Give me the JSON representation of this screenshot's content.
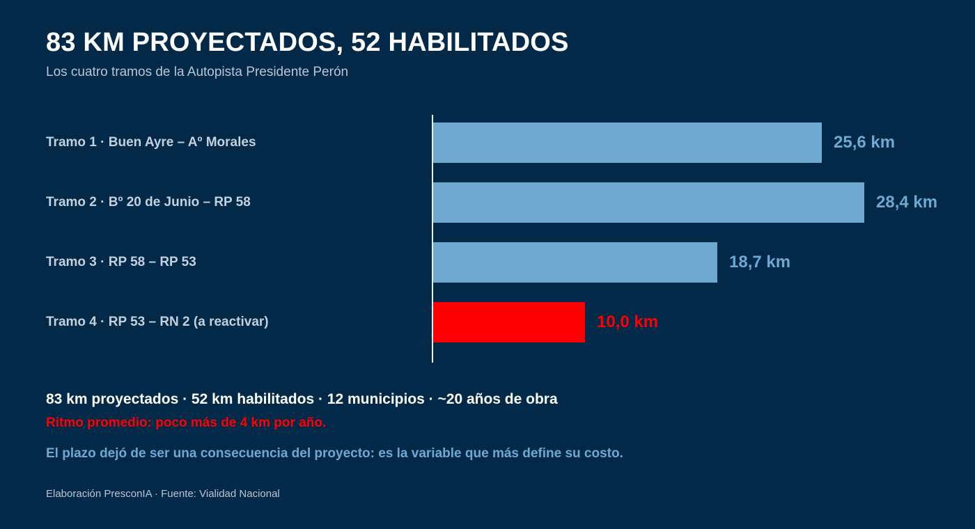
{
  "header": {
    "title": "83 KM PROYECTADOS, 52 HABILITADOS",
    "subtitle": "Los cuatro tramos de la Autopista Presidente Perón"
  },
  "chart_data": {
    "type": "bar",
    "orientation": "horizontal",
    "categories": [
      "Tramo 1 · Buen Ayre – Aº Morales",
      "Tramo 2 · Bº 20 de Junio – RP 58",
      "Tramo 3 · RP 58 – RP 53",
      "Tramo 4 · RP 53 – RN 2 (a reactivar)"
    ],
    "values": [
      25.6,
      28.4,
      18.7,
      10.0
    ],
    "value_labels": [
      "25,6 km",
      "28,4 km",
      "18,7 km",
      "10,0 km"
    ],
    "colors": [
      "#6fa8d0",
      "#6fa8d0",
      "#6fa8d0",
      "#ff0000"
    ],
    "xlim": [
      0,
      28.4
    ],
    "grid": false,
    "legend": "none"
  },
  "footer": {
    "summary": "83 km proyectados · 52 km habilitados · 12 municipios · ~20 años de obra",
    "rhythm": "Ritmo promedio: poco más de 4 km por año.",
    "takeaway": "El plazo dejó de ser una consecuencia del proyecto: es la variable que más define su costo.",
    "source": "Elaboración PresconIA · Fuente: Vialidad Nacional"
  }
}
